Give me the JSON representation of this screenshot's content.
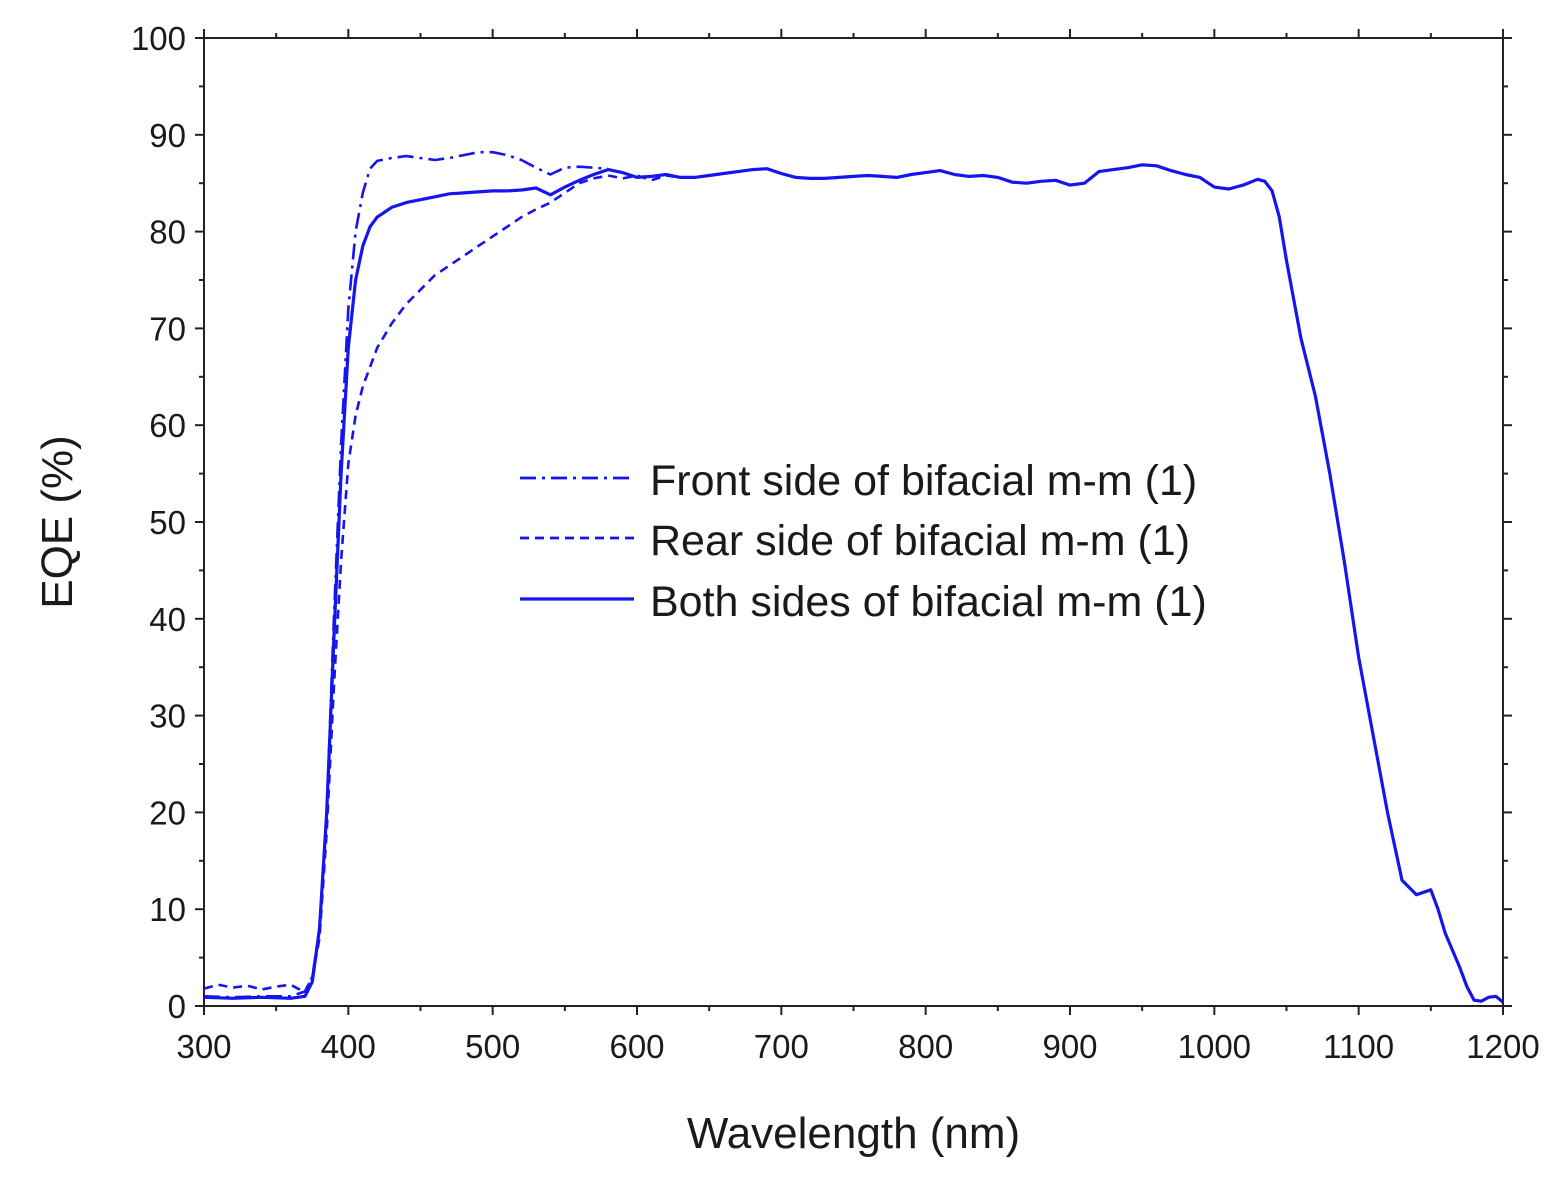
{
  "chart_data": {
    "type": "line",
    "title": "",
    "xlabel": "Wavelength (nm)",
    "ylabel": "EQE (%)",
    "xlim": [
      300,
      1200
    ],
    "ylim": [
      0,
      100
    ],
    "x_ticks": [
      300,
      400,
      500,
      600,
      700,
      800,
      900,
      1000,
      1100,
      1200
    ],
    "y_ticks": [
      0,
      10,
      20,
      30,
      40,
      50,
      60,
      70,
      80,
      90,
      100
    ],
    "x_tick_labels": [
      "300",
      "400",
      "500",
      "600",
      "700",
      "800",
      "900",
      "1000",
      "1100",
      "1200"
    ],
    "y_tick_labels": [
      "0",
      "10",
      "20",
      "30",
      "40",
      "50",
      "60",
      "70",
      "80",
      "90",
      "100"
    ],
    "grid": false,
    "legend_position": "center-right",
    "line_color": "#1515ee",
    "series": [
      {
        "name": "Front side of bifacial m-m (1)",
        "style": "dashdot",
        "x": [
          300,
          320,
          340,
          360,
          370,
          375,
          380,
          385,
          390,
          395,
          400,
          405,
          410,
          415,
          420,
          430,
          440,
          450,
          460,
          470,
          480,
          490,
          500,
          510,
          520,
          530,
          540,
          550,
          560,
          570,
          580
        ],
        "y": [
          1.0,
          0.9,
          1.0,
          1.0,
          1.5,
          3.0,
          8.0,
          20.0,
          40.0,
          58.0,
          72.0,
          80.0,
          84.0,
          86.5,
          87.3,
          87.6,
          87.8,
          87.6,
          87.4,
          87.6,
          87.9,
          88.2,
          88.2,
          87.9,
          87.4,
          86.6,
          85.9,
          86.6,
          86.7,
          86.6,
          86.5
        ]
      },
      {
        "name": "Rear side of bifacial m-m (1)",
        "style": "dash",
        "x": [
          300,
          310,
          320,
          330,
          340,
          350,
          360,
          365,
          370,
          375,
          380,
          385,
          390,
          395,
          400,
          405,
          410,
          420,
          430,
          440,
          450,
          460,
          470,
          480,
          490,
          500,
          510,
          520,
          530,
          540,
          550,
          560,
          570,
          580,
          590,
          600,
          610,
          620,
          630
        ],
        "y": [
          1.8,
          2.2,
          1.9,
          2.1,
          1.7,
          2.0,
          2.2,
          1.8,
          1.5,
          3.0,
          7.0,
          18.0,
          33.0,
          46.0,
          56.0,
          61.0,
          64.0,
          68.0,
          70.5,
          72.5,
          74.0,
          75.5,
          76.5,
          77.5,
          78.5,
          79.5,
          80.5,
          81.5,
          82.3,
          83.0,
          84.0,
          85.0,
          85.5,
          85.8,
          85.5,
          85.8,
          85.3,
          85.8,
          85.6
        ]
      },
      {
        "name": "Both sides of bifacial m-m (1)",
        "style": "solid",
        "x": [
          300,
          320,
          340,
          360,
          370,
          375,
          380,
          385,
          390,
          395,
          400,
          405,
          410,
          415,
          420,
          430,
          440,
          450,
          460,
          470,
          480,
          490,
          500,
          510,
          520,
          530,
          540,
          550,
          560,
          570,
          580,
          590,
          600,
          610,
          620,
          630,
          640,
          650,
          660,
          670,
          680,
          690,
          700,
          710,
          720,
          730,
          740,
          750,
          760,
          770,
          780,
          790,
          800,
          810,
          820,
          830,
          840,
          850,
          860,
          870,
          880,
          890,
          900,
          910,
          920,
          930,
          940,
          950,
          960,
          970,
          980,
          990,
          1000,
          1010,
          1020,
          1030,
          1035,
          1040,
          1045,
          1050,
          1060,
          1070,
          1080,
          1090,
          1100,
          1110,
          1120,
          1130,
          1140,
          1150,
          1155,
          1160,
          1170,
          1175,
          1180,
          1185,
          1190,
          1195,
          1200
        ],
        "y": [
          0.9,
          0.8,
          0.9,
          0.8,
          1.0,
          2.5,
          8.0,
          20.0,
          38.0,
          55.0,
          68.0,
          75.0,
          78.5,
          80.5,
          81.5,
          82.5,
          83.0,
          83.3,
          83.6,
          83.9,
          84.0,
          84.1,
          84.2,
          84.2,
          84.3,
          84.5,
          83.8,
          84.6,
          85.3,
          85.9,
          86.4,
          86.1,
          85.6,
          85.7,
          85.9,
          85.6,
          85.6,
          85.8,
          86.0,
          86.2,
          86.4,
          86.5,
          86.0,
          85.6,
          85.5,
          85.5,
          85.6,
          85.7,
          85.8,
          85.7,
          85.6,
          85.9,
          86.1,
          86.3,
          85.9,
          85.7,
          85.8,
          85.6,
          85.1,
          85.0,
          85.2,
          85.3,
          84.8,
          85.0,
          86.2,
          86.4,
          86.6,
          86.9,
          86.8,
          86.3,
          85.9,
          85.6,
          84.6,
          84.4,
          84.8,
          85.4,
          85.2,
          84.2,
          81.5,
          77.0,
          69.0,
          63.0,
          55.0,
          46.0,
          36.0,
          28.0,
          20.0,
          13.0,
          11.5,
          12.0,
          10.0,
          7.5,
          4.0,
          2.0,
          0.6,
          0.5,
          0.9,
          1.0,
          0.4
        ]
      }
    ]
  }
}
